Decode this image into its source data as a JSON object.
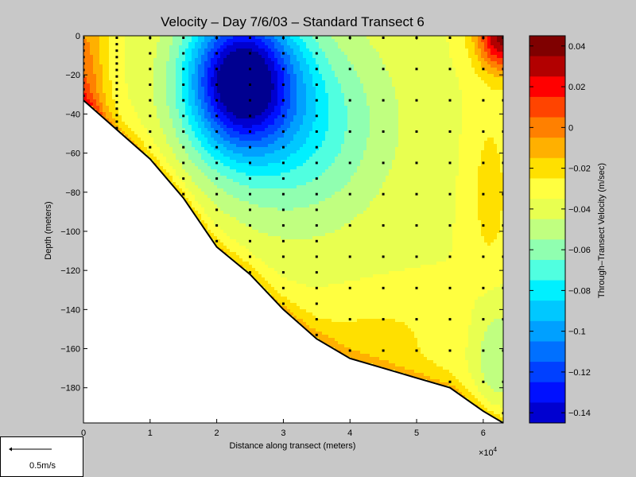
{
  "chart_data": {
    "type": "heatmap",
    "subtype": "filled-contour",
    "title": "Velocity – Day 7/6/03 – Standard Transect 6",
    "xlabel": "Distance along transect (meters)",
    "ylabel": "Depth (meters)",
    "x_multiplier_label": "×10",
    "x_multiplier_exp": "4",
    "xlim": [
      0,
      6.3
    ],
    "ylim": [
      -198,
      0
    ],
    "x_ticks": [
      "0",
      "1",
      "2",
      "3",
      "4",
      "5",
      "6"
    ],
    "x_tick_values": [
      0,
      1,
      2,
      3,
      4,
      5,
      6
    ],
    "y_ticks": [
      "0",
      "−20",
      "−40",
      "−60",
      "−80",
      "−100",
      "−120",
      "−140",
      "−160",
      "−180"
    ],
    "y_tick_values": [
      0,
      -20,
      -40,
      -60,
      -80,
      -100,
      -120,
      -140,
      -160,
      -180
    ],
    "colorbar": {
      "label": "Through–Transect Velocity (m/sec)",
      "min": -0.145,
      "max": 0.045,
      "level_step": 0.01,
      "tick_labels": [
        "0.04",
        "0.02",
        "0",
        "−0.02",
        "−0.04",
        "−0.06",
        "−0.08",
        "−0.1",
        "−0.12",
        "−0.14"
      ],
      "tick_values": [
        0.04,
        0.02,
        0,
        -0.02,
        -0.04,
        -0.06,
        -0.08,
        -0.1,
        -0.12,
        -0.14
      ],
      "colors": [
        "#7f0000",
        "#b20000",
        "#ff0000",
        "#ff4400",
        "#ff8000",
        "#ffb000",
        "#ffe000",
        "#ffff40",
        "#e8ff50",
        "#c0ff80",
        "#90ffb0",
        "#50ffe0",
        "#00f0ff",
        "#00c8ff",
        "#00a0ff",
        "#0070ff",
        "#0040ff",
        "#0010ff",
        "#0000d0",
        "#000090"
      ]
    },
    "bottom_profile": {
      "x": [
        0,
        0.5,
        1,
        1.5,
        2,
        2.5,
        3,
        3.5,
        4,
        4.5,
        5,
        5.5,
        6,
        6.3
      ],
      "depth": [
        -33,
        -48,
        -63,
        -83,
        -108,
        -122,
        -140,
        -155,
        -165,
        -170,
        -175,
        -180,
        -192,
        -198
      ]
    },
    "sample_station_x": [
      0,
      0.5,
      1,
      1.5,
      2,
      2.5,
      3,
      3.5,
      4,
      4.5,
      5,
      5.5,
      6,
      6.3
    ],
    "velocity_model": {
      "background": -0.035,
      "features": [
        {
          "x": 2.35,
          "depth": -22,
          "amplitude": -0.115,
          "sx": 0.8,
          "sy": 36
        },
        {
          "x": 3.2,
          "depth": -45,
          "amplitude": -0.04,
          "sx": 1.3,
          "sy": 50
        },
        {
          "x": 6.3,
          "depth": 0,
          "amplitude": 0.075,
          "sx": 0.4,
          "sy": 18
        },
        {
          "x": 0,
          "depth": -25,
          "amplitude": 0.035,
          "sx": 0.35,
          "sy": 60
        },
        {
          "x": 6.1,
          "depth": -80,
          "amplitude": 0.015,
          "sx": 0.3,
          "sy": 45
        },
        {
          "x": 4.5,
          "depth": -150,
          "amplitude": 0.01,
          "sx": 1.2,
          "sy": 20
        },
        {
          "x": 6.2,
          "depth": -165,
          "amplitude": -0.02,
          "sx": 0.35,
          "sy": 30
        }
      ],
      "bottom_boost": 0.025,
      "bottom_decay_m": 8
    }
  },
  "scale_legend": {
    "label": "0.5m/s"
  }
}
